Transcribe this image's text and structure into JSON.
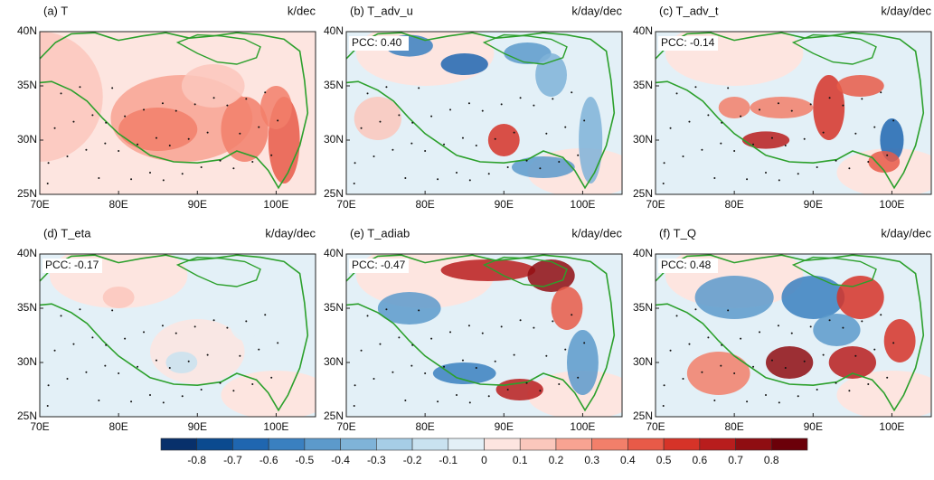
{
  "panels": [
    {
      "title": "(a) T",
      "units": "k/dec"
    },
    {
      "title": "(b) T_adv_u",
      "units": "k/day/dec",
      "pcc": "PCC: 0.40"
    },
    {
      "title": "(c) T_adv_t",
      "units": "k/day/dec",
      "pcc": "PCC: -0.14"
    },
    {
      "title": "(d) T_eta",
      "units": "k/day/dec",
      "pcc": "PCC: -0.17"
    },
    {
      "title": "(e) T_adiab",
      "units": "k/day/dec",
      "pcc": "PCC: -0.47"
    },
    {
      "title": "(f) T_Q",
      "units": "k/day/dec",
      "pcc": "PCC: 0.48"
    }
  ],
  "lonlim": [
    70,
    105
  ],
  "latlim": [
    25,
    40
  ],
  "lon_ticks": [
    {
      "value": 70,
      "label": "70E"
    },
    {
      "value": 80,
      "label": "80E"
    },
    {
      "value": 90,
      "label": "90E"
    },
    {
      "value": 100,
      "label": "100E"
    }
  ],
  "lat_ticks": [
    {
      "value": 25,
      "label": "25N"
    },
    {
      "value": 30,
      "label": "30N"
    },
    {
      "value": 35,
      "label": "35N"
    },
    {
      "value": 40,
      "label": "40N"
    }
  ],
  "colorbar": {
    "levels": [
      -0.8,
      -0.7,
      -0.6,
      -0.5,
      -0.4,
      -0.3,
      -0.2,
      -0.1,
      0,
      0.1,
      0.2,
      0.3,
      0.4,
      0.5,
      0.6,
      0.7,
      0.8
    ],
    "colors": [
      "#08306b",
      "#0b4a8f",
      "#1f66b0",
      "#3a80c0",
      "#5c9acb",
      "#7fb3d8",
      "#a6cde6",
      "#c9e2f0",
      "#e3f0f7",
      "#fde5e0",
      "#fbc7bc",
      "#f8a392",
      "#f27f6a",
      "#e85a48",
      "#d63328",
      "#b81d1d",
      "#8f0d12",
      "#6b0009"
    ]
  }
}
